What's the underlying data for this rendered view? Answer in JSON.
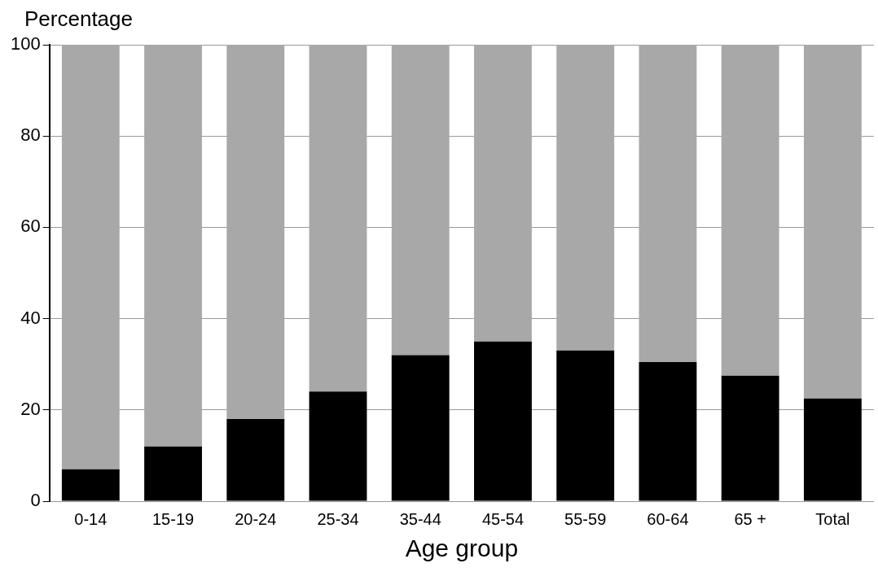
{
  "chart_data": {
    "type": "bar",
    "ylabel": "Percentage",
    "xlabel": "Age group",
    "stacked": true,
    "grid": "y",
    "legend": false,
    "categories": [
      "0-14",
      "15-19",
      "20-24",
      "25-34",
      "35-44",
      "45-54",
      "55-59",
      "60-64",
      "65 +",
      "Total"
    ],
    "series": [
      {
        "color": "#000000",
        "values": [
          7,
          12,
          18,
          24,
          32,
          35,
          33,
          30.5,
          27.5,
          22.5
        ]
      },
      {
        "color": "#a8a8a8",
        "values": [
          93,
          88,
          82,
          76,
          68,
          65,
          67,
          69.5,
          72.5,
          77.5
        ]
      }
    ],
    "ylim": [
      0,
      100
    ],
    "yticks": [
      0,
      20,
      40,
      60,
      80,
      100
    ]
  }
}
